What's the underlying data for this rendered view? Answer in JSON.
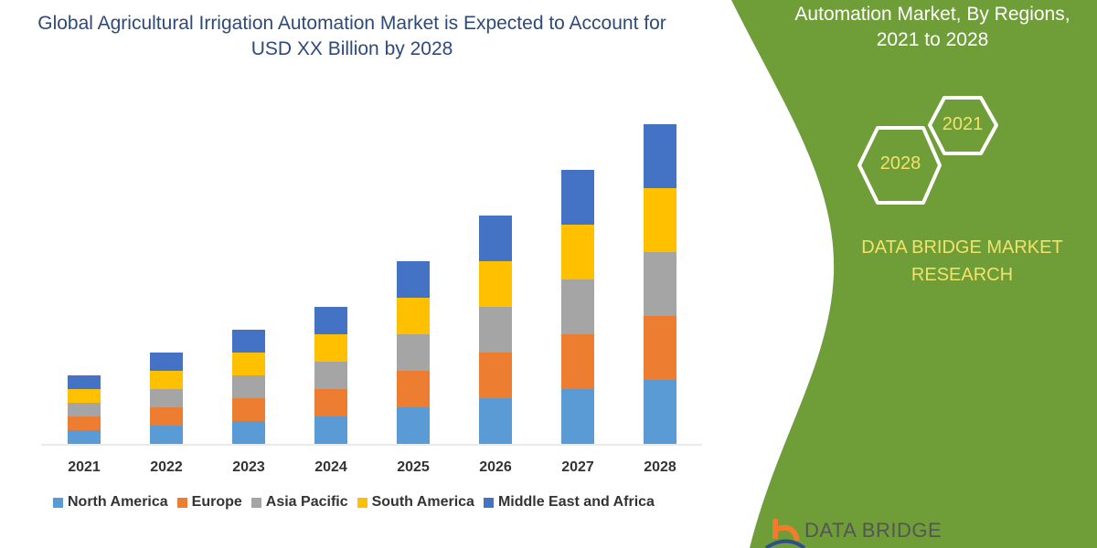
{
  "title": "Global Agricultural Irrigation Automation Market is Expected to Account for USD XX Billion by 2028",
  "side_panel": {
    "title_lines": [
      "Automation Market, By Regions,",
      "2021 to 2028"
    ],
    "hex_start": "2021",
    "hex_end": "2028",
    "brand_lines": [
      "DATA BRIDGE MARKET",
      "RESEARCH"
    ],
    "logo_text": "DATA BRIDGE",
    "color": "#6f9e38"
  },
  "chart_data": {
    "type": "bar",
    "stacked": true,
    "categories": [
      "2021",
      "2022",
      "2023",
      "2024",
      "2025",
      "2026",
      "2027",
      "2028"
    ],
    "series": [
      {
        "name": "North America",
        "color": "#5b9bd5",
        "values": [
          15,
          20,
          25,
          30,
          40,
          50,
          60,
          70
        ]
      },
      {
        "name": "Europe",
        "color": "#ed7d31",
        "values": [
          15,
          20,
          25,
          30,
          40,
          50,
          60,
          70
        ]
      },
      {
        "name": "Asia Pacific",
        "color": "#a5a5a5",
        "values": [
          15,
          20,
          25,
          30,
          40,
          50,
          60,
          70
        ]
      },
      {
        "name": "South America",
        "color": "#ffc000",
        "values": [
          15,
          20,
          25,
          30,
          40,
          50,
          60,
          70
        ]
      },
      {
        "name": "Middle East and Africa",
        "color": "#4472c4",
        "values": [
          15,
          20,
          25,
          30,
          40,
          50,
          60,
          70
        ]
      }
    ],
    "value_axis_shown": false,
    "grid": false,
    "legend": "bottom"
  }
}
